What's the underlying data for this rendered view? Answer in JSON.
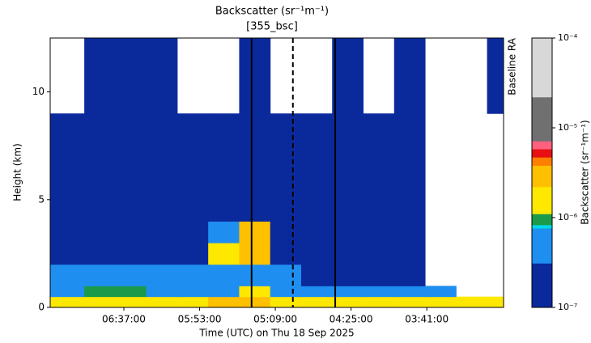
{
  "chart_data": {
    "type": "heatmap",
    "title": "Backscatter (sr⁻¹m⁻¹)",
    "subtitle": "[355_bsc]",
    "xlabel": "Time (UTC) on Thu 18 Sep 2025",
    "ylabel": "Height (km)",
    "right_label": "Baseline RA",
    "xlim": [
      7.33,
      2.94
    ],
    "xticks": [
      {
        "value": 6.6167,
        "label": "06:37:00"
      },
      {
        "value": 5.8833,
        "label": "05:53:00"
      },
      {
        "value": 5.15,
        "label": "05:09:00"
      },
      {
        "value": 4.4167,
        "label": "04:25:00"
      },
      {
        "value": 3.6833,
        "label": "03:41:00"
      }
    ],
    "ylim": [
      0,
      12.5
    ],
    "yticks": [
      0,
      5,
      10
    ],
    "x_edges": [
      7.33,
      7.0,
      6.7,
      6.4,
      6.1,
      5.8,
      5.5,
      5.2,
      4.9,
      4.6,
      4.3,
      4.0,
      3.7,
      3.4,
      3.1,
      2.94
    ],
    "y_edges": [
      0,
      0.5,
      1,
      2,
      3,
      4,
      6,
      9,
      12.5
    ],
    "z": [
      [
        1.5e-06,
        2e-06,
        2e-06,
        1.5e-06,
        2e-06,
        2.5e-06,
        3e-06,
        2e-06,
        2e-06,
        1.5e-06,
        1.5e-06,
        1.5e-06,
        1.5e-06,
        2e-06,
        1.2e-06
      ],
      [
        5e-07,
        1e-06,
        9e-07,
        5e-07,
        5e-07,
        6e-07,
        1.2e-06,
        5e-07,
        5e-07,
        5e-07,
        5e-07,
        5e-07,
        6e-07,
        null,
        null
      ],
      [
        5e-07,
        5e-07,
        5e-07,
        5e-07,
        5e-07,
        5e-07,
        5e-07,
        5e-07,
        2e-07,
        2e-07,
        2e-07,
        2e-07,
        null,
        null,
        null
      ],
      [
        2e-07,
        2e-07,
        2e-07,
        2e-07,
        2e-07,
        1.5e-06,
        2.5e-06,
        2e-07,
        2e-07,
        2e-07,
        2e-07,
        2e-07,
        null,
        null,
        null
      ],
      [
        2e-07,
        2e-07,
        2e-07,
        2e-07,
        2e-07,
        5e-07,
        3e-06,
        2e-07,
        2e-07,
        2e-07,
        2e-07,
        2e-07,
        null,
        null,
        null
      ],
      [
        2e-07,
        2e-07,
        2e-07,
        2e-07,
        2e-07,
        2e-07,
        2e-07,
        2e-07,
        2e-07,
        2e-07,
        2e-07,
        2e-07,
        null,
        null,
        null
      ],
      [
        2e-07,
        2e-07,
        2e-07,
        2e-07,
        2e-07,
        2e-07,
        2e-07,
        2e-07,
        2e-07,
        2e-07,
        2e-07,
        2e-07,
        null,
        null,
        null
      ],
      [
        null,
        2e-07,
        2e-07,
        2e-07,
        null,
        null,
        2e-07,
        null,
        null,
        2e-07,
        null,
        2e-07,
        null,
        null,
        2e-07
      ]
    ],
    "colorbar": {
      "label": "Backscatter (sr⁻¹m⁻¹)",
      "log": true,
      "lim": [
        1e-07,
        0.0001
      ],
      "ticks": [
        {
          "value": 1e-07,
          "label": "10⁻⁷"
        },
        {
          "value": 1e-06,
          "label": "10⁻⁶"
        },
        {
          "value": 1e-05,
          "label": "10⁻⁵"
        },
        {
          "value": 0.0001,
          "label": "10⁻⁴"
        }
      ],
      "levels": [
        1e-07,
        3.1e-07,
        7.6e-07,
        8.3e-07,
        1.1e-06,
        2.2e-06,
        3.8e-06,
        4.7e-06,
        5.8e-06,
        7.1e-06,
        2.2e-05,
        0.0001
      ],
      "colors": [
        "#0a2a9c",
        "#1e8ff0",
        "#00d8e8",
        "#1b9a4a",
        "#ffe800",
        "#ffc000",
        "#ff8000",
        "#e81010",
        "#ff6080",
        "#707070",
        "#d8d8d8"
      ]
    },
    "vlines": [
      {
        "x": 5.38,
        "style": "solid"
      },
      {
        "x": 4.98,
        "style": "dashed"
      },
      {
        "x": 4.57,
        "style": "solid"
      }
    ]
  }
}
